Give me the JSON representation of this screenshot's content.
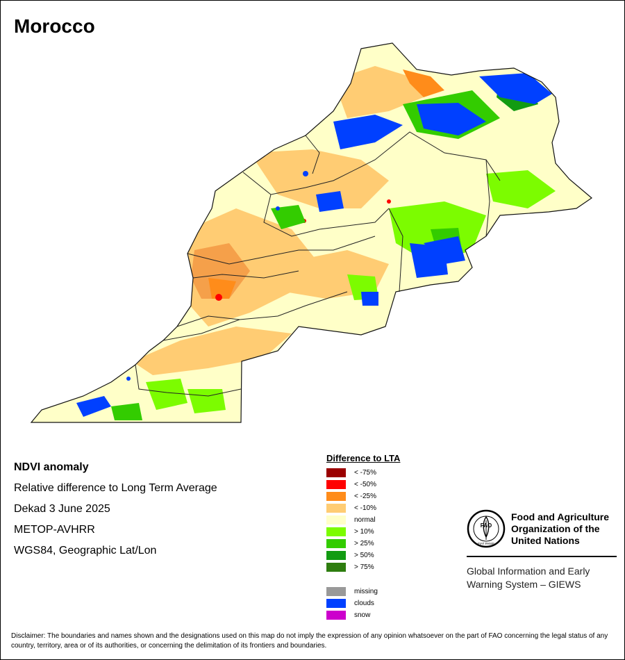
{
  "header": {
    "title": "Morocco"
  },
  "info": {
    "product": "NDVI anomaly",
    "description": "Relative difference to Long Term Average",
    "period": "Dekad 3 June 2025",
    "sensor": "METOP-AVHRR",
    "projection": "WGS84, Geographic Lat/Lon"
  },
  "legend": {
    "title": "Difference to LTA",
    "classes": [
      {
        "label": "< -75%",
        "color": "#9b0000"
      },
      {
        "label": "< -50%",
        "color": "#ff0000"
      },
      {
        "label": "< -25%",
        "color": "#ff8c1a"
      },
      {
        "label": "< -10%",
        "color": "#ffcc73"
      },
      {
        "label": "normal",
        "color": "#ffffc8"
      },
      {
        "label": "> 10%",
        "color": "#7cfc00"
      },
      {
        "label": "> 25%",
        "color": "#33cc00"
      },
      {
        "label": "> 50%",
        "color": "#129b12"
      },
      {
        "label": "> 75%",
        "color": "#2e7d0f"
      }
    ],
    "extra": [
      {
        "label": "missing",
        "color": "#999999"
      },
      {
        "label": "clouds",
        "color": "#0040ff"
      },
      {
        "label": "snow",
        "color": "#cc00cc"
      }
    ]
  },
  "logo": {
    "org_line1": "Food and Agriculture",
    "org_line2": "Organization of the",
    "org_line3": "United Nations",
    "seal_text": "FAO",
    "seal_motto": "FIAT PANIS",
    "system_line1": "Global Information and Early",
    "system_line2": "Warning System – GIEWS"
  },
  "disclaimer": "Disclaimer: The boundaries and names shown and the designations used on this map do not imply the expression of any opinion whatsoever on the part of FAO concerning the legal status of any country, territory, area or of its authorities, or concerning the delimitation of its frontiers and boundaries."
}
